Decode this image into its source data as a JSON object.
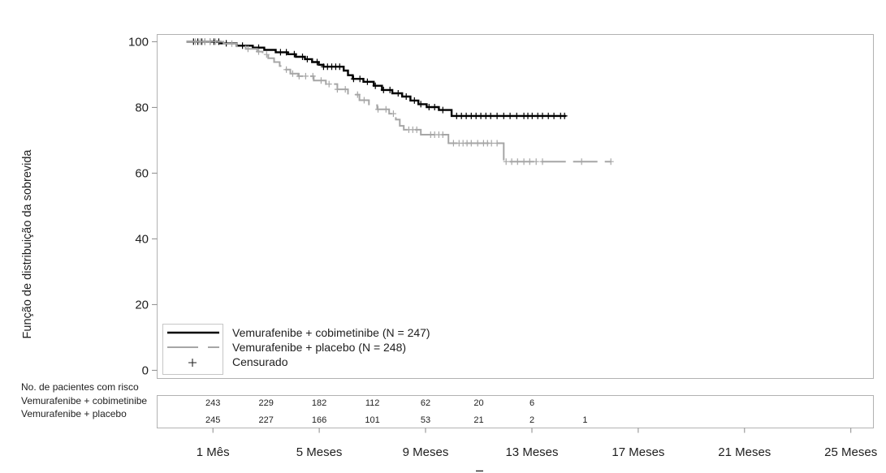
{
  "chart_data": {
    "type": "line",
    "line_shape": "step",
    "ylabel": "Função de distribuição da sobrevida",
    "xlim": [
      -1.1,
      25.85
    ],
    "ylim": [
      -2.5,
      102.2
    ],
    "grid": false,
    "yticks": [
      0,
      20,
      40,
      60,
      80,
      100
    ],
    "ytick_labels": [
      "0",
      "20",
      "40",
      "60",
      "80",
      "100"
    ],
    "xticks": [
      1,
      5,
      9,
      13,
      17,
      21,
      25
    ],
    "xtick_labels": [
      "1 Mês",
      "5 Meses",
      "9 Meses",
      "13 Meses",
      "17 Meses",
      "21 Meses",
      "25 Meses"
    ],
    "legend": {
      "position": "bottom-left",
      "censor_label": "Censurado"
    },
    "series": [
      {
        "name": "Vemurafenibe + cobimetinibe (N = 247)",
        "color": "#000000",
        "dash": "solid",
        "x": [
          0.0,
          1.28,
          1.89,
          2.5,
          2.93,
          3.36,
          3.82,
          4.12,
          4.46,
          4.73,
          4.98,
          5.16,
          5.92,
          6.08,
          6.26,
          6.66,
          7.05,
          7.36,
          7.75,
          8.12,
          8.43,
          8.73,
          9.04,
          9.5,
          9.98,
          14.29
        ],
        "y": [
          100.0,
          99.5,
          98.8,
          98.2,
          97.5,
          96.8,
          96.2,
          95.4,
          94.7,
          93.8,
          93.0,
          92.4,
          91.2,
          89.8,
          88.7,
          87.8,
          86.6,
          85.3,
          84.3,
          83.3,
          82.1,
          81.0,
          80.1,
          79.2,
          77.4,
          77.4
        ],
        "censored": [
          0.27,
          0.43,
          0.58,
          0.7,
          0.89,
          1.04,
          1.22,
          1.5,
          2.11,
          2.72,
          3.54,
          3.76,
          4.06,
          4.37,
          4.55,
          4.92,
          5.16,
          5.31,
          5.47,
          5.62,
          5.77,
          6.29,
          6.53,
          6.81,
          7.11,
          7.42,
          7.66,
          7.97,
          8.27,
          8.58,
          8.82,
          9.13,
          9.34,
          9.65,
          10.17,
          10.35,
          10.53,
          10.72,
          10.9,
          11.08,
          11.27,
          11.45,
          11.69,
          11.94,
          12.18,
          12.43,
          12.7,
          12.85,
          13.01,
          13.22,
          13.4,
          13.62,
          13.83,
          14.08,
          14.23
        ]
      },
      {
        "name": "Vemurafenibe + placebo (N = 248)",
        "color": "#a6a6a6",
        "dash": "dashed",
        "x": [
          0.0,
          1.4,
          1.89,
          2.23,
          2.66,
          2.87,
          3.08,
          3.3,
          3.51,
          3.69,
          3.91,
          4.21,
          4.79,
          5.25,
          5.68,
          6.08,
          6.51,
          6.87,
          7.18,
          7.63,
          7.88,
          8.03,
          8.18,
          8.82,
          9.86,
          11.94,
          15.97
        ],
        "y": [
          100.0,
          99.4,
          98.6,
          97.8,
          97.0,
          96.1,
          95.0,
          93.8,
          92.6,
          91.5,
          90.3,
          89.5,
          88.2,
          87.1,
          85.5,
          83.9,
          82.2,
          80.7,
          79.4,
          78.1,
          76.3,
          74.4,
          73.2,
          71.7,
          69.1,
          63.5,
          63.5
        ],
        "censored": [
          0.34,
          0.52,
          0.7,
          0.89,
          1.1,
          1.71,
          2.32,
          2.72,
          3.02,
          3.76,
          4.0,
          4.24,
          4.49,
          4.76,
          5.07,
          5.37,
          5.68,
          5.98,
          6.44,
          6.69,
          7.21,
          7.51,
          7.79,
          8.37,
          8.52,
          8.67,
          9.19,
          9.34,
          9.5,
          9.65,
          10.05,
          10.26,
          10.41,
          10.56,
          10.72,
          10.96,
          11.18,
          11.33,
          11.48,
          11.69,
          12.03,
          12.24,
          12.46,
          12.7,
          12.92,
          13.16,
          13.4,
          14.87,
          15.97
        ]
      }
    ],
    "risk_table": {
      "title": "No. de pacientes com risco",
      "times": [
        1,
        3,
        5,
        7,
        9,
        11,
        13,
        15
      ],
      "rows": [
        {
          "label": "Vemurafenibe + cobimetinibe",
          "counts": [
            243,
            229,
            182,
            112,
            62,
            20,
            6,
            null
          ]
        },
        {
          "label": "Vemurafenibe + placebo",
          "counts": [
            245,
            227,
            166,
            101,
            53,
            21,
            2,
            1
          ]
        }
      ]
    }
  }
}
